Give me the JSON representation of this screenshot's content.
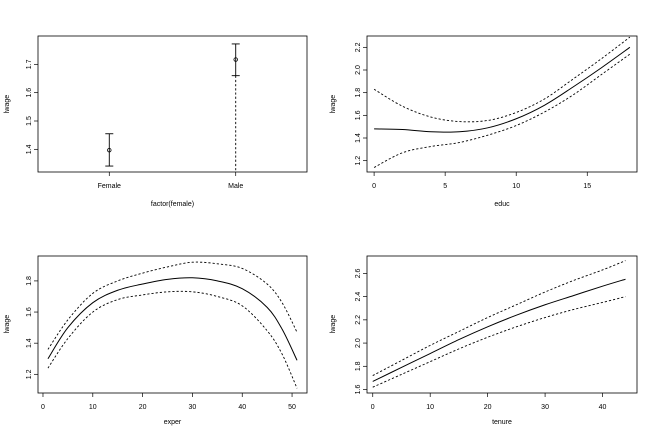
{
  "chart_data": [
    {
      "type": "scatter",
      "xlabel": "factor(female)",
      "ylabel": "lwage",
      "categories": [
        "Female",
        "Male"
      ],
      "estimate": [
        1.397,
        1.717
      ],
      "lower": [
        1.341,
        1.66
      ],
      "upper": [
        1.455,
        1.772
      ],
      "dashed_segment_category": "Male",
      "ylim": [
        1.32,
        1.8
      ],
      "yticks": [
        1.4,
        1.5,
        1.6,
        1.7
      ],
      "ytick_labels": [
        "1.4",
        "1.5",
        "1.6",
        "1.7"
      ]
    },
    {
      "type": "line",
      "xlabel": "educ",
      "ylabel": "lwage",
      "x": [
        0,
        2,
        4,
        6,
        8,
        10,
        12,
        14,
        16,
        18
      ],
      "series": [
        {
          "role": "fit",
          "values": [
            1.48,
            1.475,
            1.455,
            1.455,
            1.49,
            1.57,
            1.69,
            1.85,
            2.02,
            2.2
          ]
        },
        {
          "role": "upper",
          "values": [
            1.83,
            1.68,
            1.585,
            1.545,
            1.555,
            1.625,
            1.745,
            1.92,
            2.1,
            2.29
          ]
        },
        {
          "role": "lower",
          "values": [
            1.14,
            1.27,
            1.325,
            1.36,
            1.425,
            1.51,
            1.63,
            1.78,
            1.96,
            2.14
          ]
        }
      ],
      "xlim": [
        -0.5,
        18.5
      ],
      "ylim": [
        1.1,
        2.3
      ],
      "xticks": [
        0,
        5,
        10,
        15
      ],
      "yticks": [
        1.2,
        1.4,
        1.6,
        1.8,
        2.0,
        2.2
      ],
      "ytick_labels": [
        "1.2",
        "1.4",
        "1.6",
        "1.8",
        "2.0",
        "2.2"
      ]
    },
    {
      "type": "line",
      "xlabel": "exper",
      "ylabel": "lwage",
      "x": [
        1,
        5,
        10,
        15,
        20,
        25,
        30,
        35,
        40,
        45,
        48,
        51
      ],
      "series": [
        {
          "role": "fit",
          "values": [
            1.3,
            1.5,
            1.66,
            1.74,
            1.78,
            1.81,
            1.82,
            1.8,
            1.75,
            1.63,
            1.49,
            1.29
          ]
        },
        {
          "role": "upper",
          "values": [
            1.36,
            1.55,
            1.72,
            1.8,
            1.85,
            1.89,
            1.92,
            1.91,
            1.88,
            1.78,
            1.66,
            1.47
          ]
        },
        {
          "role": "lower",
          "values": [
            1.24,
            1.43,
            1.6,
            1.68,
            1.71,
            1.73,
            1.73,
            1.7,
            1.64,
            1.48,
            1.33,
            1.11
          ]
        }
      ],
      "xlim": [
        -1,
        53
      ],
      "ylim": [
        1.08,
        1.96
      ],
      "xticks": [
        0,
        10,
        20,
        30,
        40,
        50
      ],
      "yticks": [
        1.2,
        1.4,
        1.6,
        1.8
      ],
      "ytick_labels": [
        "1.2",
        "1.4",
        "1.6",
        "1.8"
      ]
    },
    {
      "type": "line",
      "xlabel": "tenure",
      "ylabel": "lwage",
      "x": [
        0,
        5,
        10,
        15,
        20,
        25,
        30,
        35,
        40,
        44
      ],
      "series": [
        {
          "role": "fit",
          "values": [
            1.67,
            1.79,
            1.91,
            2.03,
            2.14,
            2.24,
            2.33,
            2.41,
            2.49,
            2.55
          ]
        },
        {
          "role": "upper",
          "values": [
            1.72,
            1.85,
            1.98,
            2.1,
            2.22,
            2.33,
            2.44,
            2.54,
            2.63,
            2.71
          ]
        },
        {
          "role": "lower",
          "values": [
            1.62,
            1.73,
            1.84,
            1.95,
            2.05,
            2.14,
            2.22,
            2.29,
            2.35,
            2.4
          ]
        }
      ],
      "xlim": [
        -1,
        46
      ],
      "ylim": [
        1.57,
        2.75
      ],
      "xticks": [
        0,
        10,
        20,
        30,
        40
      ],
      "yticks": [
        1.6,
        1.8,
        2.0,
        2.2,
        2.4,
        2.6
      ],
      "ytick_labels": [
        "1.6",
        "1.8",
        "2.0",
        "2.2",
        "2.4",
        "2.6"
      ]
    }
  ]
}
